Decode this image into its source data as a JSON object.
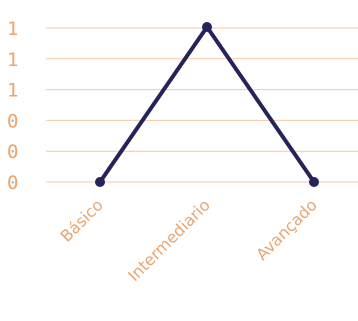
{
  "chart_data": {
    "type": "line",
    "categories": [
      "Básico",
      "Intermediario",
      "Avançado"
    ],
    "values": [
      0,
      1,
      0
    ],
    "y_tick_labels": [
      "1",
      "1",
      "1",
      "0",
      "0",
      "0"
    ],
    "ylim": [
      0,
      1
    ],
    "grid": true,
    "legend": "none",
    "colors": {
      "line": "#25235a",
      "point": "#25235a",
      "grid": "#f5c9a6",
      "tick_text": "#e8a56e"
    }
  }
}
